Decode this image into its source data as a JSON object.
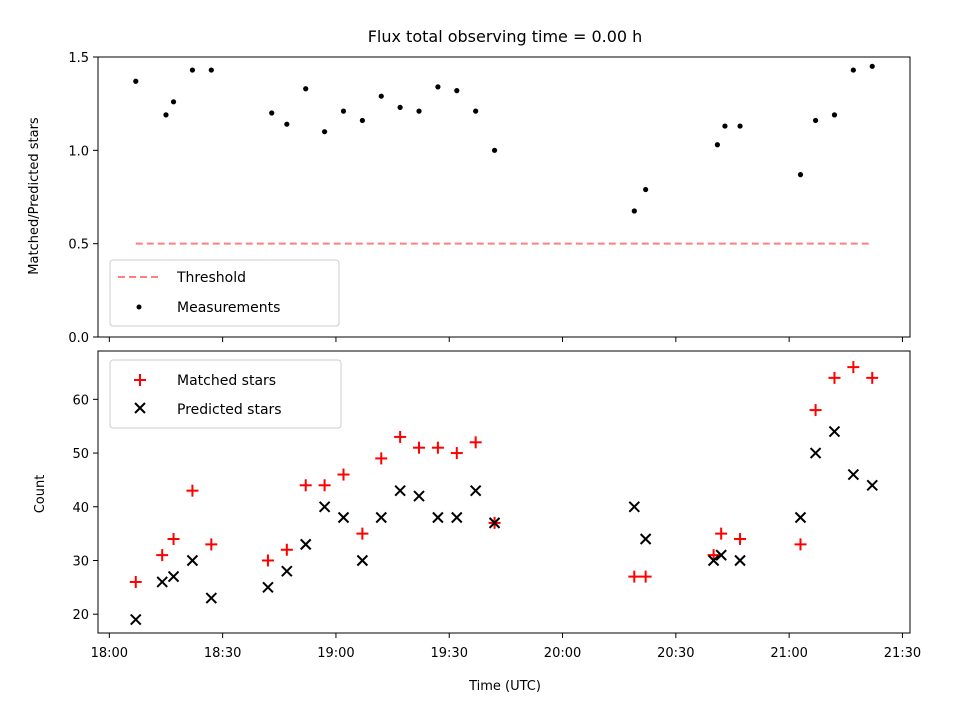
{
  "chart_data": [
    {
      "type": "scatter",
      "title": "Flux total observing time = 0.00 h",
      "xlabel": "",
      "ylabel": "Matched/Predicted stars",
      "ylim": [
        0,
        1.5
      ],
      "yticks": [
        "0.0",
        "0.5",
        "1.0",
        "1.5"
      ],
      "xlim": [
        "17:57",
        "21:32"
      ],
      "legend_position": "lower-left",
      "series": [
        {
          "name": "Threshold",
          "kind": "dashed-line",
          "color": "#ff7f7f",
          "x": [
            "18:07",
            "21:22"
          ],
          "y": [
            0.5,
            0.5
          ]
        },
        {
          "name": "Measurements",
          "kind": "dot",
          "color": "#000000",
          "x": [
            "18:07",
            "18:15",
            "18:17",
            "18:22",
            "18:27",
            "18:43",
            "18:47",
            "18:52",
            "18:57",
            "19:02",
            "19:07",
            "19:12",
            "19:17",
            "19:22",
            "19:27",
            "19:32",
            "19:37",
            "19:42",
            "20:19",
            "20:22",
            "20:41",
            "20:43",
            "20:47",
            "21:03",
            "21:07",
            "21:12",
            "21:17",
            "21:22"
          ],
          "y": [
            1.37,
            1.19,
            1.26,
            1.43,
            1.43,
            1.2,
            1.14,
            1.33,
            1.1,
            1.21,
            1.16,
            1.29,
            1.23,
            1.21,
            1.34,
            1.32,
            1.21,
            1.0,
            0.675,
            0.79,
            1.03,
            1.13,
            1.13,
            0.87,
            1.16,
            1.19,
            1.43,
            1.45
          ]
        }
      ]
    },
    {
      "type": "scatter",
      "title": "",
      "xlabel": "Time (UTC)",
      "ylabel": "Count",
      "ylim": [
        16.5,
        69
      ],
      "yticks": [
        "20",
        "30",
        "40",
        "50",
        "60"
      ],
      "xticks": [
        "18:00",
        "18:30",
        "19:00",
        "19:30",
        "20:00",
        "20:30",
        "21:00",
        "21:30"
      ],
      "xlim": [
        "17:57",
        "21:32"
      ],
      "legend_position": "upper-left",
      "series": [
        {
          "name": "Matched stars",
          "kind": "plus",
          "color": "#ff0000",
          "x": [
            "18:07",
            "18:14",
            "18:17",
            "18:22",
            "18:27",
            "18:42",
            "18:47",
            "18:52",
            "18:57",
            "19:02",
            "19:07",
            "19:12",
            "19:17",
            "19:22",
            "19:27",
            "19:32",
            "19:37",
            "19:42",
            "20:19",
            "20:22",
            "20:40",
            "20:42",
            "20:47",
            "21:03",
            "21:07",
            "21:12",
            "21:17",
            "21:22"
          ],
          "y": [
            26,
            31,
            34,
            43,
            33,
            30,
            32,
            44,
            44,
            46,
            35,
            49,
            53,
            51,
            51,
            50,
            52,
            37,
            27,
            27,
            31,
            35,
            34,
            33,
            58,
            64,
            66,
            64
          ]
        },
        {
          "name": "Predicted stars",
          "kind": "x",
          "color": "#000000",
          "x": [
            "18:07",
            "18:14",
            "18:17",
            "18:22",
            "18:27",
            "18:42",
            "18:47",
            "18:52",
            "18:57",
            "19:02",
            "19:07",
            "19:12",
            "19:17",
            "19:22",
            "19:27",
            "19:32",
            "19:37",
            "19:42",
            "20:19",
            "20:22",
            "20:40",
            "20:42",
            "20:47",
            "21:03",
            "21:07",
            "21:12",
            "21:17",
            "21:22"
          ],
          "y": [
            19,
            26,
            27,
            30,
            23,
            25,
            28,
            33,
            40,
            38,
            30,
            38,
            43,
            42,
            38,
            38,
            43,
            37,
            40,
            34,
            30,
            31,
            30,
            38,
            50,
            54,
            46,
            44
          ]
        }
      ]
    }
  ]
}
